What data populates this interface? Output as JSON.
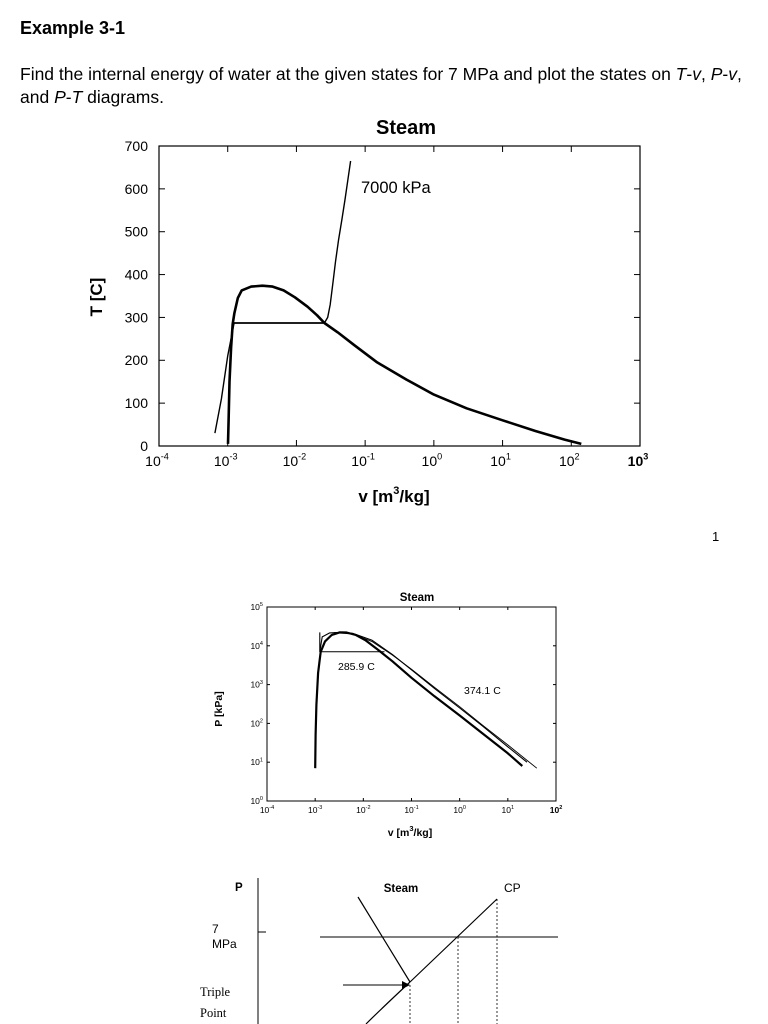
{
  "document": {
    "heading": "Example 3-1",
    "intro": {
      "p1": "Find the internal energy of water at the given states for 7 MPa and plot the states on ",
      "t": "T",
      "d1": "-",
      "v1": "v",
      "c1": ", ",
      "p": "P",
      "d2": "-",
      "v2": "v",
      "c2": ", and ",
      "p3": "P",
      "d3": "-",
      "t3": "T",
      "end": " diagrams."
    },
    "page_number": "1"
  },
  "chart_data": [
    {
      "type": "line",
      "title": "Steam",
      "xlabel": {
        "base": "v [m",
        "sup": "3",
        "tail": "/kg]"
      },
      "ylabel": "T [C]",
      "x_scale": "log",
      "xlim": [
        0.0001,
        1000
      ],
      "ylim": [
        0,
        700
      ],
      "yticks": [
        0,
        100,
        200,
        300,
        400,
        500,
        600,
        700
      ],
      "xticks": [
        {
          "base": "10",
          "exp": "-4"
        },
        {
          "base": "10",
          "exp": "-3"
        },
        {
          "base": "10",
          "exp": "-2"
        },
        {
          "base": "10",
          "exp": "-1"
        },
        {
          "base": "10",
          "exp": "0"
        },
        {
          "base": "10",
          "exp": "1"
        },
        {
          "base": "10",
          "exp": "2"
        },
        {
          "base": "10",
          "exp": "3"
        }
      ],
      "annotation": "7000 kPa",
      "series": [
        {
          "x": [
            0.00101,
            0.00103,
            0.00106,
            0.00112,
            0.00118,
            0.00125,
            0.0014,
            0.0016,
            0.0022,
            0.0032,
            0.0045,
            0.0065,
            0.0095,
            0.0145,
            0.02,
            0.0255
          ],
          "y": [
            5,
            60,
            150,
            230,
            285,
            310,
            345,
            363,
            372,
            374,
            372,
            363,
            347,
            325,
            305,
            287
          ]
        },
        {
          "x": [
            0.0255,
            0.04,
            0.07,
            0.15,
            0.4,
            1,
            3,
            10,
            30,
            80,
            140
          ],
          "y": [
            287,
            265,
            235,
            195,
            155,
            120,
            88,
            60,
            35,
            15,
            5
          ]
        },
        {
          "x": [
            0.00124,
            0.0255
          ],
          "y": [
            287,
            287
          ]
        },
        {
          "x": [
            0.00065,
            0.00081,
            0.001,
            0.00124,
            0.0255,
            0.0285,
            0.031,
            0.034,
            0.037,
            0.041,
            0.046,
            0.051,
            0.056,
            0.0615
          ],
          "y": [
            30,
            110,
            210,
            287,
            287,
            300,
            330,
            380,
            430,
            480,
            530,
            575,
            620,
            665
          ]
        }
      ]
    },
    {
      "type": "line",
      "title": "Steam",
      "xlabel": {
        "base": "v [m",
        "sup": "3",
        "tail": "/kg]"
      },
      "ylabel": "P [kPa]",
      "x_scale": "log",
      "y_scale": "log",
      "xlim": [
        0.0001,
        100
      ],
      "ylim": [
        1,
        100000
      ],
      "xticks": [
        {
          "base": "10",
          "exp": "-4"
        },
        {
          "base": "10",
          "exp": "-3"
        },
        {
          "base": "10",
          "exp": "-2"
        },
        {
          "base": "10",
          "exp": "-1"
        },
        {
          "base": "10",
          "exp": "0"
        },
        {
          "base": "10",
          "exp": "1"
        },
        {
          "base": "10",
          "exp": "2"
        }
      ],
      "yticks": [
        {
          "base": "10",
          "exp": "0"
        },
        {
          "base": "10",
          "exp": "1"
        },
        {
          "base": "10",
          "exp": "2"
        },
        {
          "base": "10",
          "exp": "3"
        },
        {
          "base": "10",
          "exp": "4"
        },
        {
          "base": "10",
          "exp": "5"
        }
      ],
      "annotations": [
        "285.9 C",
        "374.1 C"
      ],
      "series": [
        {
          "x": [
            0.001,
            0.00102,
            0.00106,
            0.00115,
            0.0013,
            0.0016,
            0.0022,
            0.0032,
            0.0045,
            0.007,
            0.011,
            0.02,
            0.04,
            0.1,
            0.3,
            1,
            3,
            10,
            20
          ],
          "y": [
            7,
            50,
            300,
            2000,
            7000,
            13000,
            19000,
            22100,
            22000,
            19000,
            14000,
            8000,
            4000,
            1500,
            500,
            160,
            55,
            17,
            8
          ]
        },
        {
          "x": [
            0.00125,
            0.00125,
            0.00125,
            0.0014,
            0.002,
            0.0032,
            0.006,
            0.015,
            0.04,
            0.1,
            0.3,
            1,
            3,
            10,
            25
          ],
          "y": [
            22100,
            7000,
            7000,
            17000,
            21500,
            22100,
            21000,
            14000,
            6000,
            2400,
            800,
            250,
            85,
            25,
            10
          ]
        },
        {
          "x": [
            0.00125,
            0.0275
          ],
          "y": [
            7000,
            7000
          ]
        },
        {
          "x": [
            0.0025,
            0.006,
            0.015,
            0.04,
            0.1,
            0.3,
            1,
            3,
            10,
            40
          ],
          "y": [
            22000,
            20000,
            13000,
            5800,
            2500,
            850,
            270,
            90,
            28,
            7
          ]
        }
      ]
    },
    {
      "type": "line",
      "title": "Steam",
      "ylabel": "P",
      "tick_label": {
        "value": "7",
        "unit": "MPa"
      },
      "point_labels": {
        "cp": "CP",
        "triple_1": "Triple",
        "triple_2": "Point"
      }
    }
  ]
}
